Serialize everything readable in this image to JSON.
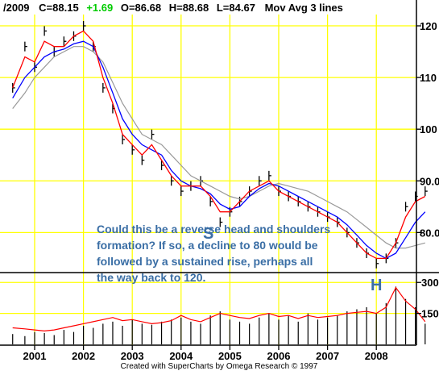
{
  "header": {
    "date": "/2009",
    "close": "C=88.15",
    "change": "+1.69",
    "open": "O=86.68",
    "high": "H=88.68",
    "low": "L=84.67",
    "indicator": "Mov Avg 3 lines"
  },
  "footer": "Created with SuperCharts by Omega Research © 1997",
  "annotation": {
    "lines": [
      "Could this be a reverse head and shoulders",
      "formation? If so, a decline to 80 would be",
      "followed by a sustained rise, perhaps all",
      "the way back to 120."
    ],
    "shoulder_label": "S",
    "head_label": "H"
  },
  "colors": {
    "price_bars": "#000000",
    "ma_fast": "#ff0000",
    "ma_medium": "#0000ff",
    "ma_slow": "#999999",
    "gridline": "#ffff00",
    "volume_avg": "#ff0000",
    "annotation": "#3a6ea5",
    "change_positive": "#00cc00"
  },
  "chart_data": {
    "type": "line",
    "title": "",
    "x_ticks": [
      "2001",
      "2002",
      "2003",
      "2004",
      "2005",
      "2006",
      "2007",
      "2008"
    ],
    "price_panel": {
      "y_ticks": [
        80,
        90,
        100,
        110,
        120
      ],
      "y_tick_labels": [
        "80.0",
        "90.0",
        "100",
        "110",
        "120"
      ],
      "ylim": [
        73.5,
        122.5
      ],
      "x_dates": [
        2000.55,
        2000.8,
        2001.0,
        2001.2,
        2001.4,
        2001.6,
        2001.8,
        2002.0,
        2002.2,
        2002.4,
        2002.6,
        2002.8,
        2003.0,
        2003.2,
        2003.4,
        2003.6,
        2003.8,
        2004.0,
        2004.2,
        2004.4,
        2004.6,
        2004.8,
        2005.0,
        2005.2,
        2005.4,
        2005.6,
        2005.8,
        2006.0,
        2006.2,
        2006.4,
        2006.6,
        2006.8,
        2007.0,
        2007.2,
        2007.4,
        2007.6,
        2007.8,
        2008.0,
        2008.2,
        2008.4,
        2008.6,
        2008.8,
        2009.0
      ],
      "series": [
        {
          "role": "price",
          "values": [
            108,
            116,
            112,
            119,
            115,
            117,
            118,
            120,
            116,
            108,
            104,
            98,
            96,
            94,
            99,
            93,
            90,
            88,
            89,
            90,
            86,
            82,
            84,
            86,
            88,
            90,
            91,
            88,
            87,
            86,
            85,
            84,
            83,
            82,
            80,
            78,
            76,
            74,
            75,
            78,
            85,
            87,
            88
          ]
        },
        {
          "role": "moving-average-fast",
          "values": [
            108,
            114,
            113,
            117,
            116,
            116,
            118,
            119,
            117,
            110,
            105,
            99,
            97,
            95,
            97,
            94,
            91,
            89,
            89,
            89,
            87,
            84,
            84,
            86,
            88,
            89,
            90,
            88,
            87,
            86,
            85,
            84,
            83,
            82,
            80,
            78,
            76,
            75,
            75,
            78,
            83,
            86,
            87
          ]
        },
        {
          "role": "moving-average-medium",
          "values": [
            106,
            110,
            112,
            114,
            115,
            115.5,
            116.5,
            117,
            116,
            112,
            107,
            102,
            99,
            97,
            96,
            95,
            92,
            90,
            89,
            88.5,
            87.5,
            85.5,
            84.5,
            85,
            87,
            88.5,
            89.5,
            89,
            88,
            87,
            86,
            85,
            84,
            83,
            81.5,
            79.5,
            77.5,
            76,
            75,
            76,
            79,
            82,
            84
          ]
        },
        {
          "role": "moving-average-slow",
          "values": [
            104,
            107,
            110,
            112,
            114,
            115,
            116,
            116,
            115,
            113,
            109,
            105,
            102,
            99,
            98,
            97,
            95,
            93,
            91,
            90,
            89,
            88,
            87,
            86.5,
            87,
            88,
            89,
            89.5,
            89,
            88.5,
            88,
            87,
            86,
            85,
            84,
            82.5,
            81,
            79.5,
            78,
            77,
            77,
            77.5,
            78
          ]
        }
      ]
    },
    "volume_panel": {
      "y_ticks": [
        150,
        300
      ],
      "y_tick_labels": [
        "150",
        "300"
      ],
      "ylim": [
        0,
        340
      ],
      "x_dates": [
        2000.55,
        2000.8,
        2001.0,
        2001.2,
        2001.4,
        2001.6,
        2001.8,
        2002.0,
        2002.2,
        2002.4,
        2002.6,
        2002.8,
        2003.0,
        2003.2,
        2003.4,
        2003.6,
        2003.8,
        2004.0,
        2004.2,
        2004.4,
        2004.6,
        2004.8,
        2005.0,
        2005.2,
        2005.4,
        2005.6,
        2005.8,
        2006.0,
        2006.2,
        2006.4,
        2006.6,
        2006.8,
        2007.0,
        2007.2,
        2007.4,
        2007.6,
        2007.8,
        2008.0,
        2008.2,
        2008.4,
        2008.6,
        2008.8,
        2009.0
      ],
      "volume_values": [
        50,
        40,
        60,
        55,
        45,
        70,
        60,
        90,
        80,
        100,
        110,
        90,
        120,
        100,
        95,
        110,
        120,
        130,
        110,
        100,
        140,
        160,
        120,
        110,
        100,
        130,
        150,
        120,
        140,
        110,
        150,
        120,
        130,
        140,
        160,
        170,
        180,
        150,
        200,
        280,
        220,
        180,
        100
      ],
      "volume_average": [
        80,
        75,
        70,
        65,
        70,
        80,
        90,
        100,
        110,
        120,
        130,
        115,
        120,
        110,
        100,
        105,
        115,
        140,
        120,
        110,
        130,
        150,
        140,
        130,
        125,
        140,
        150,
        135,
        140,
        125,
        140,
        130,
        135,
        140,
        150,
        155,
        160,
        150,
        180,
        275,
        210,
        170,
        110
      ]
    }
  }
}
